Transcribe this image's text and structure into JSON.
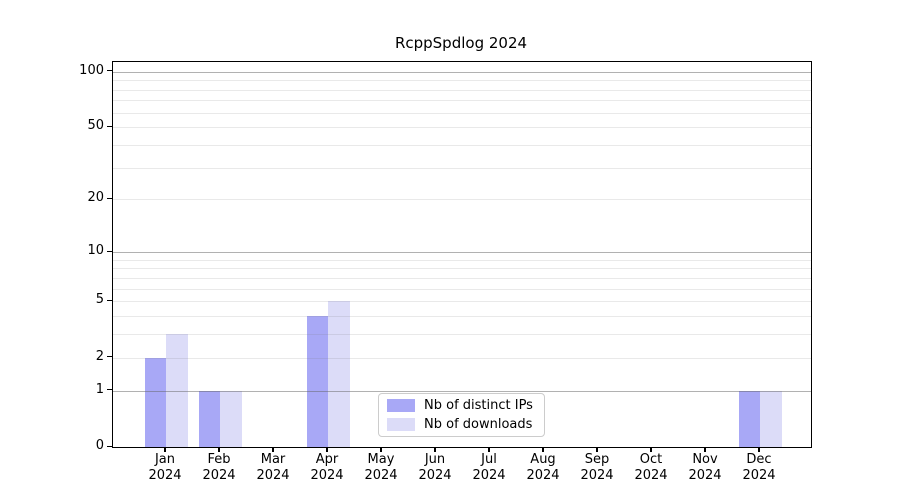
{
  "title": "RcppSpdlog 2024",
  "colors": {
    "distinct_ips": "#a8a8f6",
    "downloads": "#dcdcf8",
    "grid_major": "rgba(100,100,100,0.50)",
    "grid_minor": "rgba(120,120,120,0.16)",
    "axis": "#000000",
    "legend_border": "#cccccc"
  },
  "chart_data": {
    "type": "bar",
    "title": "RcppSpdlog 2024",
    "yscale": "log1p",
    "ylim": [
      0,
      113
    ],
    "grid": true,
    "legend_position": "lower center",
    "categories": [
      {
        "month": "Jan",
        "year": "2024"
      },
      {
        "month": "Feb",
        "year": "2024"
      },
      {
        "month": "Mar",
        "year": "2024"
      },
      {
        "month": "Apr",
        "year": "2024"
      },
      {
        "month": "May",
        "year": "2024"
      },
      {
        "month": "Jun",
        "year": "2024"
      },
      {
        "month": "Jul",
        "year": "2024"
      },
      {
        "month": "Aug",
        "year": "2024"
      },
      {
        "month": "Sep",
        "year": "2024"
      },
      {
        "month": "Oct",
        "year": "2024"
      },
      {
        "month": "Nov",
        "year": "2024"
      },
      {
        "month": "Dec",
        "year": "2024"
      }
    ],
    "series": [
      {
        "key": "distinct_ips",
        "name": "Nb of distinct IPs",
        "color": "#a8a8f6",
        "values": [
          2,
          1,
          0,
          4,
          0,
          0,
          0,
          0,
          0,
          0,
          0,
          1
        ]
      },
      {
        "key": "downloads",
        "name": "Nb of downloads",
        "color": "#dcdcf8",
        "values": [
          3,
          1,
          0,
          5,
          0,
          0,
          0,
          0,
          0,
          0,
          0,
          1
        ]
      }
    ],
    "yticks": [
      100,
      50,
      20,
      10,
      5,
      2,
      1,
      0
    ],
    "yticks_major_grid": [
      1,
      10,
      100
    ],
    "yticks_minor_grid": [
      2,
      3,
      4,
      5,
      6,
      7,
      8,
      9,
      20,
      30,
      40,
      50,
      60,
      70,
      80,
      90
    ]
  }
}
